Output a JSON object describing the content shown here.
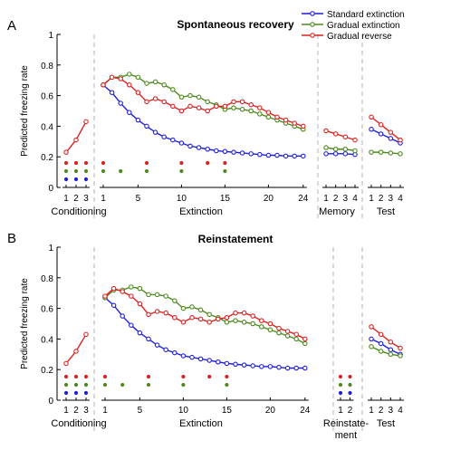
{
  "colors": {
    "blue": "#1f1fdd",
    "green": "#4c8a1e",
    "red": "#dd2222",
    "divider": "#b4b4b4",
    "axis": "#000000"
  },
  "legend": [
    {
      "name": "Standard extinction",
      "color": "#1f1fdd"
    },
    {
      "name": "Gradual extinction",
      "color": "#4c8a1e"
    },
    {
      "name": "Gradual reverse",
      "color": "#dd2222"
    }
  ],
  "chart_data": [
    {
      "type": "line",
      "panel_letter": "A",
      "title": "Spontaneous recovery",
      "ylabel": "Predicted freezing rate",
      "ylim": [
        0,
        1
      ],
      "yticks": [
        "0",
        "0.2",
        "0.4",
        "0.6",
        "0.8",
        "1"
      ],
      "grid": false,
      "legend_position": "top-right",
      "segments": [
        {
          "label": "Conditioning",
          "x": [
            1,
            2,
            3
          ],
          "tick_labels": [
            "1",
            "2",
            "3"
          ],
          "series": [
            {
              "color": "red",
              "values": [
                0.23,
                0.31,
                0.43
              ]
            }
          ],
          "dots": [
            {
              "color": "red",
              "trials": [
                1,
                2,
                3
              ]
            },
            {
              "color": "green",
              "trials": [
                1,
                2,
                3
              ]
            },
            {
              "color": "blue",
              "trials": [
                1,
                2,
                3
              ]
            }
          ]
        },
        {
          "label": "Extinction",
          "x": [
            1,
            2,
            3,
            4,
            5,
            6,
            7,
            8,
            9,
            10,
            11,
            12,
            13,
            14,
            15,
            16,
            17,
            18,
            19,
            20,
            21,
            22,
            23,
            24
          ],
          "tick_labels": [
            "1",
            "5",
            "10",
            "15",
            "20",
            "24"
          ],
          "tick_values": [
            1,
            5,
            10,
            15,
            20,
            24
          ],
          "series": [
            {
              "name": "Standard extinction",
              "color": "blue",
              "values": [
                0.67,
                0.62,
                0.55,
                0.49,
                0.44,
                0.4,
                0.36,
                0.33,
                0.31,
                0.29,
                0.27,
                0.26,
                0.25,
                0.24,
                0.235,
                0.23,
                0.225,
                0.22,
                0.215,
                0.21,
                0.21,
                0.205,
                0.205,
                0.205
              ]
            },
            {
              "name": "Gradual extinction",
              "color": "green",
              "values": [
                0.67,
                0.72,
                0.72,
                0.74,
                0.72,
                0.68,
                0.69,
                0.67,
                0.64,
                0.59,
                0.6,
                0.59,
                0.56,
                0.54,
                0.51,
                0.52,
                0.51,
                0.5,
                0.48,
                0.46,
                0.44,
                0.42,
                0.4,
                0.38
              ]
            },
            {
              "name": "Gradual reverse",
              "color": "red",
              "values": [
                0.67,
                0.72,
                0.71,
                0.67,
                0.62,
                0.56,
                0.58,
                0.56,
                0.53,
                0.5,
                0.53,
                0.52,
                0.5,
                0.53,
                0.53,
                0.56,
                0.56,
                0.54,
                0.52,
                0.49,
                0.46,
                0.44,
                0.42,
                0.4
              ]
            }
          ],
          "dots": [
            {
              "color": "red",
              "trials": [
                1,
                6,
                10,
                13,
                15
              ]
            },
            {
              "color": "green",
              "trials": [
                1,
                3,
                6,
                10,
                15
              ]
            }
          ]
        },
        {
          "label": "Memory",
          "x": [
            1,
            2,
            3,
            4
          ],
          "tick_labels": [
            "1",
            "2",
            "3",
            "4"
          ],
          "series": [
            {
              "color": "blue",
              "values": [
                0.22,
                0.22,
                0.22,
                0.215
              ]
            },
            {
              "color": "green",
              "values": [
                0.26,
                0.25,
                0.25,
                0.24
              ]
            },
            {
              "color": "red",
              "values": [
                0.37,
                0.35,
                0.33,
                0.31
              ]
            }
          ],
          "dots": []
        },
        {
          "label": "Test",
          "x": [
            1,
            2,
            3,
            4
          ],
          "tick_labels": [
            "1",
            "2",
            "3",
            "4"
          ],
          "series": [
            {
              "color": "blue",
              "values": [
                0.38,
                0.35,
                0.32,
                0.29
              ]
            },
            {
              "color": "green",
              "values": [
                0.23,
                0.23,
                0.225,
                0.22
              ]
            },
            {
              "color": "red",
              "values": [
                0.46,
                0.41,
                0.36,
                0.31
              ]
            }
          ],
          "dots": []
        }
      ]
    },
    {
      "type": "line",
      "panel_letter": "B",
      "title": "Reinstatement",
      "ylabel": "Predicted freezing rate",
      "ylim": [
        0,
        1
      ],
      "yticks": [
        "0",
        "0.2",
        "0.4",
        "0.6",
        "0.8",
        "1"
      ],
      "grid": false,
      "segments": [
        {
          "label": "Conditioning",
          "x": [
            1,
            2,
            3
          ],
          "tick_labels": [
            "1",
            "2",
            "3"
          ],
          "series": [
            {
              "color": "red",
              "values": [
                0.24,
                0.32,
                0.43
              ]
            }
          ],
          "dots": [
            {
              "color": "red",
              "trials": [
                1,
                2,
                3
              ]
            },
            {
              "color": "green",
              "trials": [
                1,
                2,
                3
              ]
            },
            {
              "color": "blue",
              "trials": [
                1,
                2,
                3
              ]
            }
          ]
        },
        {
          "label": "Extinction",
          "x": [
            1,
            2,
            3,
            4,
            5,
            6,
            7,
            8,
            9,
            10,
            11,
            12,
            13,
            14,
            15,
            16,
            17,
            18,
            19,
            20,
            21,
            22,
            23,
            24
          ],
          "tick_labels": [
            "1",
            "5",
            "10",
            "15",
            "20",
            "24"
          ],
          "tick_values": [
            1,
            5,
            10,
            15,
            20,
            24
          ],
          "series": [
            {
              "name": "Standard extinction",
              "color": "blue",
              "values": [
                0.67,
                0.62,
                0.55,
                0.49,
                0.44,
                0.4,
                0.36,
                0.33,
                0.31,
                0.29,
                0.28,
                0.27,
                0.26,
                0.25,
                0.24,
                0.235,
                0.23,
                0.225,
                0.22,
                0.22,
                0.215,
                0.21,
                0.21,
                0.21
              ]
            },
            {
              "name": "Gradual extinction",
              "color": "green",
              "values": [
                0.67,
                0.72,
                0.72,
                0.74,
                0.73,
                0.69,
                0.69,
                0.68,
                0.65,
                0.6,
                0.61,
                0.59,
                0.56,
                0.54,
                0.51,
                0.52,
                0.51,
                0.5,
                0.48,
                0.46,
                0.44,
                0.42,
                0.4,
                0.37
              ]
            },
            {
              "name": "Gradual reverse",
              "color": "red",
              "values": [
                0.68,
                0.73,
                0.71,
                0.68,
                0.63,
                0.56,
                0.58,
                0.57,
                0.54,
                0.51,
                0.54,
                0.53,
                0.51,
                0.53,
                0.54,
                0.57,
                0.57,
                0.55,
                0.52,
                0.5,
                0.47,
                0.45,
                0.43,
                0.4
              ]
            }
          ],
          "dots": [
            {
              "color": "red",
              "trials": [
                1,
                6,
                10,
                13,
                15
              ]
            },
            {
              "color": "green",
              "trials": [
                1,
                3,
                6,
                10,
                15
              ]
            }
          ]
        },
        {
          "label": "Reinstate-\nment",
          "x": [
            1,
            2
          ],
          "tick_labels": [
            "1",
            "2"
          ],
          "series": [],
          "dots": [
            {
              "color": "red",
              "trials": [
                1,
                2
              ]
            },
            {
              "color": "green",
              "trials": [
                1,
                2
              ]
            },
            {
              "color": "blue",
              "trials": [
                1,
                2
              ]
            }
          ]
        },
        {
          "label": "Test",
          "x": [
            1,
            2,
            3,
            4
          ],
          "tick_labels": [
            "1",
            "2",
            "3",
            "4"
          ],
          "series": [
            {
              "color": "blue",
              "values": [
                0.4,
                0.37,
                0.33,
                0.3
              ]
            },
            {
              "color": "green",
              "values": [
                0.35,
                0.32,
                0.3,
                0.29
              ]
            },
            {
              "color": "red",
              "values": [
                0.48,
                0.43,
                0.38,
                0.34
              ]
            }
          ],
          "dots": []
        }
      ]
    }
  ]
}
